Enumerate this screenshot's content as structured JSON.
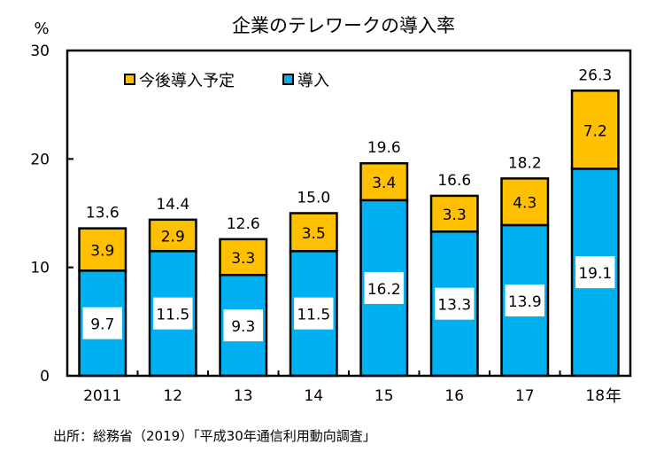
{
  "chart_data": {
    "type": "bar",
    "stacked": true,
    "title": "企業のテレワークの導入率",
    "ylabel": "%",
    "xlabel": "年",
    "ylim": [
      0,
      30
    ],
    "yticks": [
      0,
      10,
      20,
      30
    ],
    "ytick_labels": [
      "0",
      "10",
      "20",
      "30"
    ],
    "categories": [
      "2011",
      "12",
      "13",
      "14",
      "15",
      "16",
      "17",
      "18"
    ],
    "series": [
      {
        "name": "導入",
        "color": "#00B0F0",
        "values": [
          9.7,
          11.5,
          9.3,
          11.5,
          16.2,
          13.3,
          13.9,
          19.1
        ]
      },
      {
        "name": "今後導入予定",
        "color": "#FFC000",
        "values": [
          3.9,
          2.9,
          3.3,
          3.5,
          3.4,
          3.3,
          4.3,
          7.2
        ]
      }
    ],
    "totals": [
      13.6,
      14.4,
      12.6,
      15.0,
      19.6,
      16.6,
      18.2,
      26.3
    ],
    "total_labels": [
      "13.6",
      "14.4",
      "12.6",
      "15.0",
      "19.6",
      "16.6",
      "18.2",
      "26.3"
    ],
    "series_labels": [
      [
        "9.7",
        "11.5",
        "9.3",
        "11.5",
        "16.2",
        "13.3",
        "13.9",
        "19.1"
      ],
      [
        "3.9",
        "2.9",
        "3.3",
        "3.5",
        "3.4",
        "3.3",
        "4.3",
        "7.2"
      ]
    ],
    "legend": {
      "position": "top-left",
      "entries": [
        "今後導入予定",
        "導入"
      ]
    },
    "grid": false,
    "source": "出所：総務省（2019）「平成30年通信利用動向調査」"
  }
}
